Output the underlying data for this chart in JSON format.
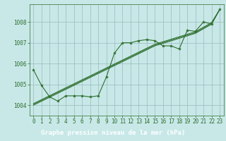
{
  "title": "Graphe pression niveau de la mer (hPa)",
  "bg_color": "#c8e8e8",
  "plot_bg_color": "#c8e8e8",
  "label_bg_color": "#2d6e2d",
  "label_text_color": "#ffffff",
  "grid_color": "#99bbbb",
  "line_color": "#2d6e2d",
  "xlim": [
    -0.5,
    23.5
  ],
  "ylim": [
    1003.5,
    1008.85
  ],
  "yticks": [
    1004,
    1005,
    1006,
    1007,
    1008
  ],
  "xticks": [
    0,
    1,
    2,
    3,
    4,
    5,
    6,
    7,
    8,
    9,
    10,
    11,
    12,
    13,
    14,
    15,
    16,
    17,
    18,
    19,
    20,
    21,
    22,
    23
  ],
  "main_data": [
    1005.7,
    1004.95,
    1004.4,
    1004.2,
    1004.45,
    1004.45,
    1004.45,
    1004.4,
    1004.45,
    1005.35,
    1006.5,
    1007.0,
    1007.0,
    1007.1,
    1007.15,
    1007.1,
    1006.85,
    1006.85,
    1006.7,
    1007.6,
    1007.55,
    1008.0,
    1007.9,
    1008.6
  ],
  "trend1": [
    1004.08,
    1004.27,
    1004.46,
    1004.65,
    1004.84,
    1005.03,
    1005.22,
    1005.41,
    1005.6,
    1005.79,
    1005.98,
    1006.17,
    1006.36,
    1006.55,
    1006.74,
    1006.93,
    1007.05,
    1007.17,
    1007.29,
    1007.41,
    1007.53,
    1007.75,
    1007.97,
    1008.6
  ],
  "trend2": [
    1004.04,
    1004.23,
    1004.42,
    1004.61,
    1004.8,
    1004.99,
    1005.18,
    1005.37,
    1005.56,
    1005.75,
    1005.94,
    1006.13,
    1006.32,
    1006.51,
    1006.7,
    1006.89,
    1007.01,
    1007.13,
    1007.25,
    1007.37,
    1007.49,
    1007.71,
    1007.93,
    1008.6
  ],
  "trend3": [
    1004.0,
    1004.19,
    1004.38,
    1004.57,
    1004.76,
    1004.95,
    1005.14,
    1005.33,
    1005.52,
    1005.71,
    1005.9,
    1006.09,
    1006.28,
    1006.47,
    1006.66,
    1006.85,
    1006.97,
    1007.09,
    1007.21,
    1007.33,
    1007.45,
    1007.67,
    1007.89,
    1008.6
  ],
  "tick_fontsize": 5.5,
  "title_fontsize": 6.5
}
